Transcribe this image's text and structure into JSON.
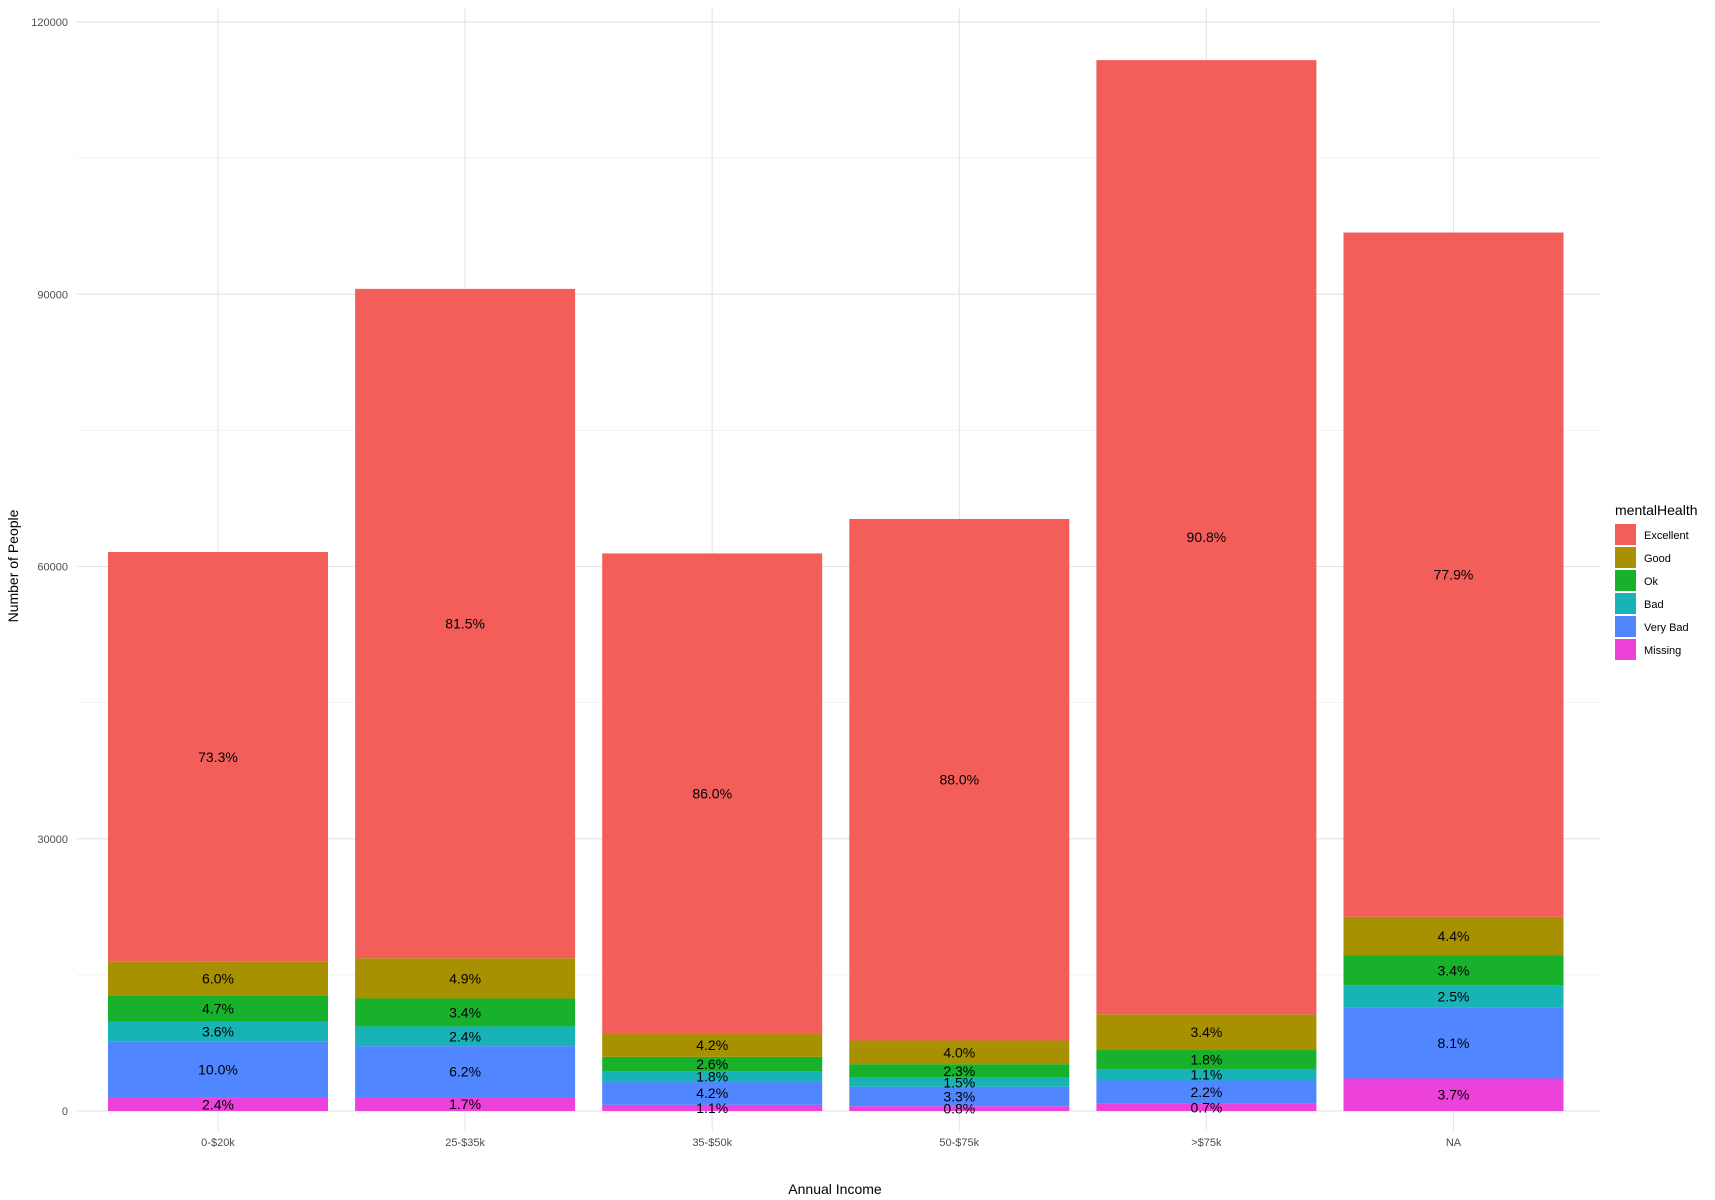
{
  "chart_data": {
    "type": "bar",
    "stacked": true,
    "title": "",
    "xlabel": "Annual Income",
    "ylabel": "Number of People",
    "ylim": [
      0,
      120000
    ],
    "yticks": [
      0,
      30000,
      60000,
      90000,
      120000
    ],
    "grid": true,
    "legend": {
      "title": "mentalHealth",
      "position": "right"
    },
    "categories": [
      "0-$20k",
      "25-$35k",
      "35-$50k",
      "50-$75k",
      ">$75k",
      "NA"
    ],
    "series": [
      {
        "name": "Excellent",
        "color": "#F35E5A",
        "values": [
          45153,
          73758,
          52890,
          57464,
          105146,
          75407
        ],
        "labels": [
          "73.3%",
          "81.5%",
          "86.0%",
          "88.0%",
          "90.8%",
          "77.9%"
        ]
      },
      {
        "name": "Good",
        "color": "#A89100",
        "values": [
          3696,
          4435,
          2583,
          2612,
          3937,
          4259
        ],
        "labels": [
          "6.0%",
          "4.9%",
          "4.2%",
          "4.0%",
          "3.4%",
          "4.4%"
        ]
      },
      {
        "name": "Ok",
        "color": "#17B12B",
        "values": [
          2895,
          3077,
          1599,
          1502,
          2084,
          3291
        ],
        "labels": [
          "4.7%",
          "3.4%",
          "2.6%",
          "2.3%",
          "1.8%",
          "3.4%"
        ]
      },
      {
        "name": "Bad",
        "color": "#17B3B7",
        "values": [
          2218,
          2172,
          1107,
          980,
          1274,
          2420
        ],
        "labels": [
          "3.6%",
          "2.4%",
          "1.8%",
          "1.5%",
          "1.1%",
          "2.5%"
        ]
      },
      {
        "name": "Very Bad",
        "color": "#5086FF",
        "values": [
          6160,
          5611,
          2583,
          2155,
          2548,
          7841
        ],
        "labels": [
          "10.0%",
          "6.2%",
          "4.2%",
          "3.3%",
          "2.2%",
          "8.1%"
        ]
      },
      {
        "name": "Missing",
        "color": "#ED41DB",
        "values": [
          1478,
          1539,
          677,
          522,
          811,
          3582
        ],
        "labels": [
          "2.4%",
          "1.7%",
          "1.1%",
          "0.8%",
          "0.7%",
          "3.7%"
        ]
      }
    ]
  }
}
